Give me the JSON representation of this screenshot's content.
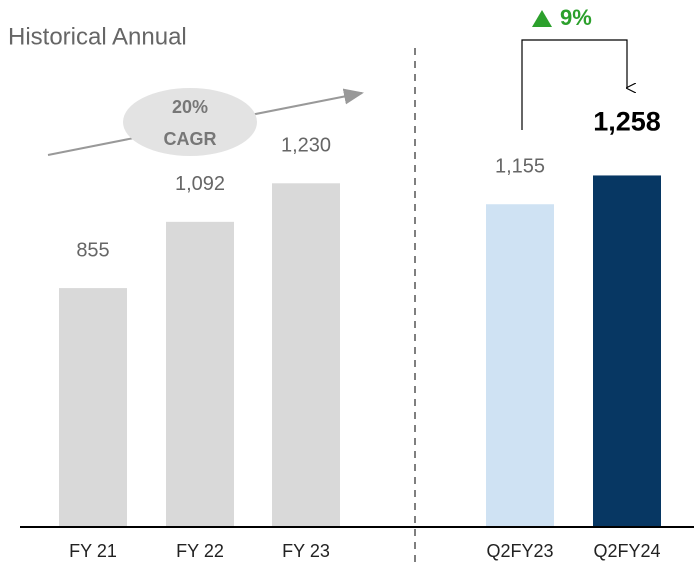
{
  "chart_data": {
    "type": "bar",
    "title": "Historical Annual",
    "categories": [
      "FY 21",
      "FY 22",
      "FY 23",
      "Q2FY23",
      "Q2FY24"
    ],
    "values": [
      855,
      1092,
      1230,
      1155,
      1258
    ],
    "value_labels": [
      "855",
      "1,092",
      "1,230",
      "1,155",
      "1,258"
    ],
    "colors": [
      "#d9d9d9",
      "#d9d9d9",
      "#d9d9d9",
      "#cfe2f3",
      "#073763"
    ],
    "ylim": [
      0,
      1800
    ],
    "annotations": {
      "cagr": [
        "20%",
        "CAGR"
      ],
      "growth": "9%"
    }
  }
}
